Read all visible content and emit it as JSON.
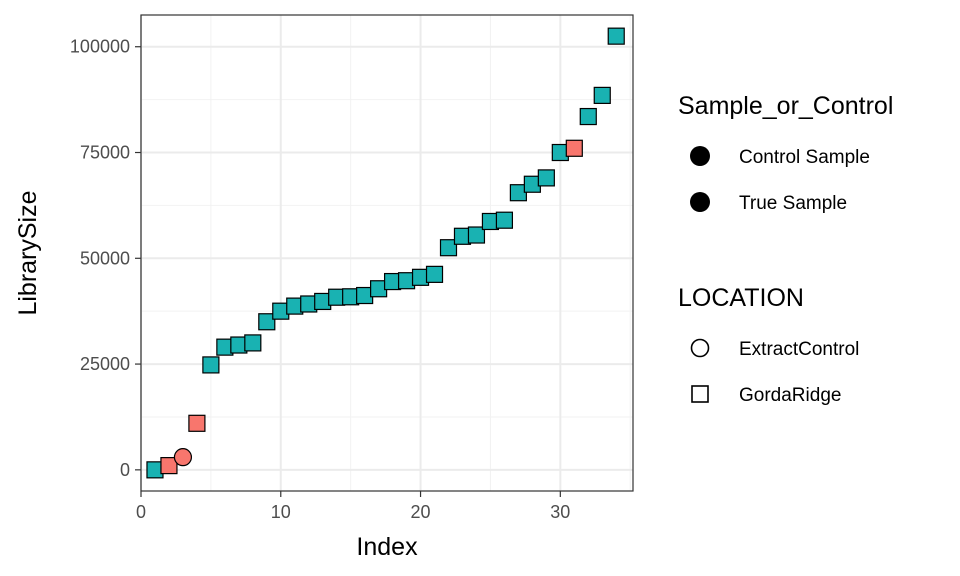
{
  "chart_data": {
    "type": "scatter",
    "xlabel": "Index",
    "ylabel": "LibrarySize",
    "xlim": [
      0.0,
      35.2
    ],
    "ylim": [
      -5000,
      107500
    ],
    "x_ticks": [
      0,
      10,
      20,
      30
    ],
    "x_tick_labels": [
      "0",
      "10",
      "20",
      "30"
    ],
    "y_ticks": [
      0,
      25000,
      50000,
      75000,
      100000
    ],
    "y_tick_labels": [
      "0",
      "25000",
      "50000",
      "75000",
      "100000"
    ],
    "grid": true,
    "legend_position": "right",
    "colors": {
      "control": "#F8766D",
      "true_sample": "#19B2B2"
    },
    "points": [
      {
        "x": 1,
        "y": 0,
        "group": "True Sample",
        "location": "GordaRidge"
      },
      {
        "x": 2,
        "y": 1000,
        "group": "Control Sample",
        "location": "GordaRidge"
      },
      {
        "x": 3,
        "y": 3000,
        "group": "Control Sample",
        "location": "ExtractControl"
      },
      {
        "x": 4,
        "y": 11000,
        "group": "Control Sample",
        "location": "GordaRidge"
      },
      {
        "x": 5,
        "y": 24800,
        "group": "True Sample",
        "location": "GordaRidge"
      },
      {
        "x": 6,
        "y": 29000,
        "group": "True Sample",
        "location": "GordaRidge"
      },
      {
        "x": 7,
        "y": 29500,
        "group": "True Sample",
        "location": "GordaRidge"
      },
      {
        "x": 8,
        "y": 30000,
        "group": "True Sample",
        "location": "GordaRidge"
      },
      {
        "x": 9,
        "y": 35000,
        "group": "True Sample",
        "location": "GordaRidge"
      },
      {
        "x": 10,
        "y": 37500,
        "group": "True Sample",
        "location": "GordaRidge"
      },
      {
        "x": 11,
        "y": 38700,
        "group": "True Sample",
        "location": "GordaRidge"
      },
      {
        "x": 12,
        "y": 39200,
        "group": "True Sample",
        "location": "GordaRidge"
      },
      {
        "x": 13,
        "y": 39800,
        "group": "True Sample",
        "location": "GordaRidge"
      },
      {
        "x": 14,
        "y": 40800,
        "group": "True Sample",
        "location": "GordaRidge"
      },
      {
        "x": 15,
        "y": 40900,
        "group": "True Sample",
        "location": "GordaRidge"
      },
      {
        "x": 16,
        "y": 41200,
        "group": "True Sample",
        "location": "GordaRidge"
      },
      {
        "x": 17,
        "y": 42800,
        "group": "True Sample",
        "location": "GordaRidge"
      },
      {
        "x": 18,
        "y": 44500,
        "group": "True Sample",
        "location": "GordaRidge"
      },
      {
        "x": 19,
        "y": 44700,
        "group": "True Sample",
        "location": "GordaRidge"
      },
      {
        "x": 20,
        "y": 45500,
        "group": "True Sample",
        "location": "GordaRidge"
      },
      {
        "x": 21,
        "y": 46200,
        "group": "True Sample",
        "location": "GordaRidge"
      },
      {
        "x": 22,
        "y": 52500,
        "group": "True Sample",
        "location": "GordaRidge"
      },
      {
        "x": 23,
        "y": 55200,
        "group": "True Sample",
        "location": "GordaRidge"
      },
      {
        "x": 24,
        "y": 55500,
        "group": "True Sample",
        "location": "GordaRidge"
      },
      {
        "x": 25,
        "y": 58700,
        "group": "True Sample",
        "location": "GordaRidge"
      },
      {
        "x": 26,
        "y": 59000,
        "group": "True Sample",
        "location": "GordaRidge"
      },
      {
        "x": 27,
        "y": 65500,
        "group": "True Sample",
        "location": "GordaRidge"
      },
      {
        "x": 28,
        "y": 67500,
        "group": "True Sample",
        "location": "GordaRidge"
      },
      {
        "x": 29,
        "y": 69000,
        "group": "True Sample",
        "location": "GordaRidge"
      },
      {
        "x": 30,
        "y": 75000,
        "group": "True Sample",
        "location": "GordaRidge"
      },
      {
        "x": 31,
        "y": 76000,
        "group": "Control Sample",
        "location": "GordaRidge"
      },
      {
        "x": 32,
        "y": 83500,
        "group": "True Sample",
        "location": "GordaRidge"
      },
      {
        "x": 33,
        "y": 88500,
        "group": "True Sample",
        "location": "GordaRidge"
      },
      {
        "x": 34,
        "y": 102500,
        "group": "True Sample",
        "location": "GordaRidge"
      }
    ],
    "legends": [
      {
        "title": "Sample_or_Control",
        "entries": [
          {
            "label": "Control Sample",
            "shape": "filled-circle"
          },
          {
            "label": "True Sample",
            "shape": "filled-circle"
          }
        ]
      },
      {
        "title": "LOCATION",
        "entries": [
          {
            "label": "ExtractControl",
            "shape": "open-circle"
          },
          {
            "label": "GordaRidge",
            "shape": "open-square"
          }
        ]
      }
    ]
  }
}
